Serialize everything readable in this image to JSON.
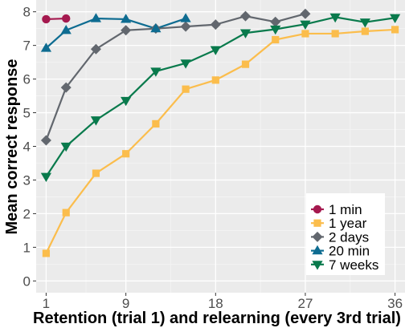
{
  "chart_data": {
    "type": "line",
    "title": "",
    "xlabel": "Retention (trial 1) and relearning (every 3rd trial)",
    "ylabel": "Mean correct response",
    "xlim": [
      0,
      37
    ],
    "ylim": [
      -0.35,
      8.35
    ],
    "x_ticks": [
      1,
      9,
      18,
      27,
      36
    ],
    "x_tick_labels": [
      "1",
      "9",
      "18",
      "27",
      "36"
    ],
    "y_ticks": [
      0,
      1,
      2,
      3,
      4,
      5,
      6,
      7,
      8
    ],
    "y_tick_labels": [
      "0",
      "1",
      "2",
      "3",
      "4",
      "5",
      "6",
      "7",
      "8"
    ],
    "grid": true,
    "panel_background": "#ebebeb",
    "legend_position": "bottom-right",
    "series": [
      {
        "name": "1 min",
        "color": "#a5194f",
        "marker": "circle",
        "x": [
          1,
          3
        ],
        "y": [
          7.78,
          7.8
        ]
      },
      {
        "name": "1 year",
        "color": "#fbbd4c",
        "marker": "square",
        "x": [
          1,
          3,
          6,
          9,
          12,
          15,
          18,
          21,
          24,
          27,
          30,
          33,
          36
        ],
        "y": [
          0.82,
          2.03,
          3.2,
          3.78,
          4.67,
          5.7,
          5.97,
          6.44,
          7.17,
          7.35,
          7.35,
          7.42,
          7.47
        ]
      },
      {
        "name": "2 days",
        "color": "#62676e",
        "marker": "diamond",
        "x": [
          1,
          3,
          6,
          9,
          12,
          15,
          18,
          21,
          24,
          27
        ],
        "y": [
          4.18,
          5.75,
          6.89,
          7.45,
          7.5,
          7.56,
          7.62,
          7.87,
          7.7,
          7.94
        ]
      },
      {
        "name": "20 min",
        "color": "#0e6c91",
        "marker": "triangle-up",
        "x": [
          1,
          3,
          6,
          9,
          12,
          15
        ],
        "y": [
          6.92,
          7.45,
          7.8,
          7.78,
          7.5,
          7.8
        ]
      },
      {
        "name": "7 weeks",
        "color": "#097a4c",
        "marker": "triangle-down",
        "x": [
          1,
          3,
          6,
          9,
          12,
          15,
          18,
          21,
          24,
          27,
          30,
          33,
          36
        ],
        "y": [
          3.1,
          4.0,
          4.78,
          5.36,
          6.23,
          6.47,
          6.87,
          7.37,
          7.48,
          7.63,
          7.84,
          7.69,
          7.82
        ]
      }
    ]
  }
}
